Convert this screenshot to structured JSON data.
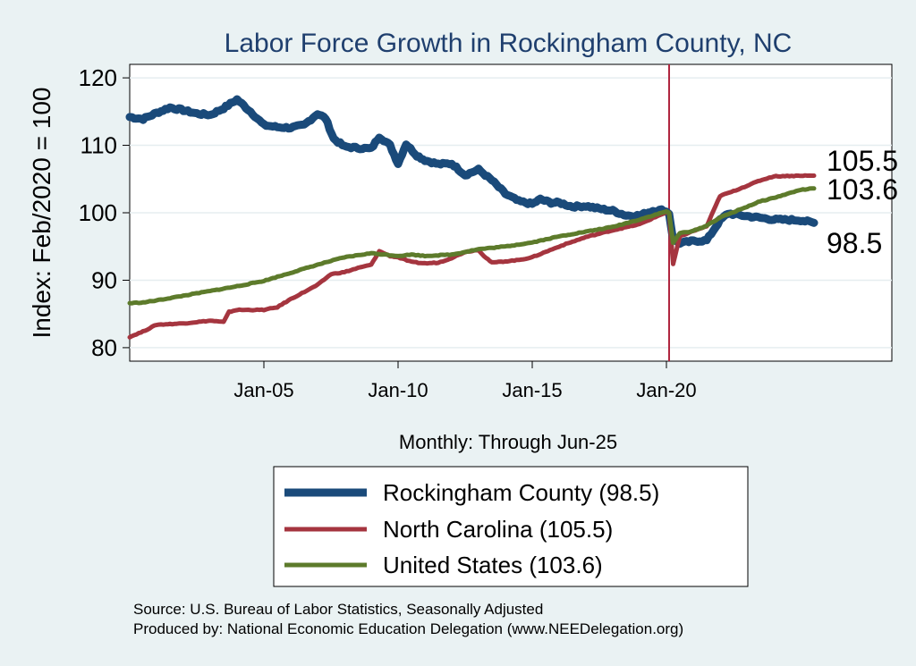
{
  "chart_data": {
    "type": "line",
    "title": "Labor Force Growth in Rockingham  County, NC",
    "xlabel": "Monthly: Through Jun-25",
    "ylabel": "Index: Feb/2020 = 100",
    "ylim": [
      78,
      122
    ],
    "yticks": [
      "80",
      "90",
      "100",
      "110",
      "120"
    ],
    "xlim": [
      2000.0,
      2028.4
    ],
    "xticks": [
      {
        "label": "Jan-05",
        "value": 2005.0
      },
      {
        "label": "Jan-10",
        "value": 2010.0
      },
      {
        "label": "Jan-15",
        "value": 2015.0
      },
      {
        "label": "Jan-20",
        "value": 2020.0
      }
    ],
    "reference_line": {
      "x": 2020.1,
      "color": "#b0263f"
    },
    "series": [
      {
        "name": "Rockingham  County",
        "legend": "Rockingham  County (98.5)",
        "end_label": "98.5",
        "color": "#1a4a7a",
        "width": 9,
        "points": [
          [
            2000.0,
            114.2
          ],
          [
            2000.5,
            113.9
          ],
          [
            2001.0,
            114.8
          ],
          [
            2001.5,
            115.6
          ],
          [
            2002.0,
            115.2
          ],
          [
            2002.5,
            114.7
          ],
          [
            2003.0,
            114.5
          ],
          [
            2003.5,
            115.5
          ],
          [
            2004.0,
            116.8
          ],
          [
            2004.5,
            115.0
          ],
          [
            2005.0,
            113.0
          ],
          [
            2005.5,
            112.7
          ],
          [
            2006.0,
            112.6
          ],
          [
            2006.5,
            113.0
          ],
          [
            2007.0,
            114.7
          ],
          [
            2007.3,
            114.0
          ],
          [
            2007.6,
            111.0
          ],
          [
            2008.0,
            109.8
          ],
          [
            2008.5,
            109.6
          ],
          [
            2009.0,
            109.5
          ],
          [
            2009.3,
            111.3
          ],
          [
            2009.7,
            110.0
          ],
          [
            2010.0,
            107.3
          ],
          [
            2010.3,
            110.2
          ],
          [
            2010.7,
            108.5
          ],
          [
            2011.0,
            107.8
          ],
          [
            2011.5,
            107.2
          ],
          [
            2012.0,
            107.3
          ],
          [
            2012.5,
            105.6
          ],
          [
            2013.0,
            106.4
          ],
          [
            2013.5,
            104.8
          ],
          [
            2014.0,
            102.8
          ],
          [
            2014.5,
            101.7
          ],
          [
            2015.0,
            101.3
          ],
          [
            2015.3,
            102.0
          ],
          [
            2015.7,
            101.5
          ],
          [
            2016.0,
            101.5
          ],
          [
            2016.5,
            100.9
          ],
          [
            2017.0,
            101.0
          ],
          [
            2017.5,
            100.6
          ],
          [
            2018.0,
            100.3
          ],
          [
            2018.5,
            99.6
          ],
          [
            2019.0,
            99.6
          ],
          [
            2019.5,
            100.3
          ],
          [
            2019.9,
            100.4
          ],
          [
            2020.1,
            99.9
          ],
          [
            2020.25,
            96.0
          ],
          [
            2020.5,
            95.5
          ],
          [
            2021.0,
            95.8
          ],
          [
            2021.5,
            95.9
          ],
          [
            2022.0,
            98.9
          ],
          [
            2022.3,
            99.9
          ],
          [
            2023.0,
            99.5
          ],
          [
            2024.0,
            99.0
          ],
          [
            2025.0,
            98.9
          ],
          [
            2025.5,
            98.5
          ]
        ]
      },
      {
        "name": "North Carolina",
        "legend": "North Carolina (105.5)",
        "end_label": "105.5",
        "color": "#a5353f",
        "width": 5,
        "points": [
          [
            2000.0,
            81.6
          ],
          [
            2000.5,
            82.4
          ],
          [
            2001.0,
            83.4
          ],
          [
            2002.0,
            83.6
          ],
          [
            2003.0,
            84.0
          ],
          [
            2003.5,
            83.8
          ],
          [
            2003.7,
            85.3
          ],
          [
            2004.0,
            85.6
          ],
          [
            2005.0,
            85.6
          ],
          [
            2005.5,
            86.0
          ],
          [
            2006.0,
            87.2
          ],
          [
            2007.0,
            89.3
          ],
          [
            2007.5,
            90.9
          ],
          [
            2008.0,
            91.2
          ],
          [
            2008.5,
            91.8
          ],
          [
            2009.0,
            92.3
          ],
          [
            2009.3,
            94.3
          ],
          [
            2009.7,
            93.6
          ],
          [
            2010.0,
            93.4
          ],
          [
            2010.5,
            92.7
          ],
          [
            2011.0,
            92.5
          ],
          [
            2011.5,
            92.6
          ],
          [
            2012.0,
            93.3
          ],
          [
            2012.5,
            94.2
          ],
          [
            2013.0,
            94.5
          ],
          [
            2013.2,
            93.6
          ],
          [
            2013.5,
            92.6
          ],
          [
            2014.0,
            92.8
          ],
          [
            2014.5,
            93.0
          ],
          [
            2015.0,
            93.4
          ],
          [
            2015.5,
            94.2
          ],
          [
            2016.0,
            95.0
          ],
          [
            2017.0,
            96.4
          ],
          [
            2018.0,
            97.4
          ],
          [
            2019.0,
            98.3
          ],
          [
            2020.0,
            100.1
          ],
          [
            2020.1,
            100.0
          ],
          [
            2020.25,
            92.4
          ],
          [
            2020.5,
            96.5
          ],
          [
            2021.0,
            97.3
          ],
          [
            2021.5,
            98.0
          ],
          [
            2022.0,
            102.5
          ],
          [
            2022.5,
            103.2
          ],
          [
            2023.0,
            104.0
          ],
          [
            2023.5,
            104.8
          ],
          [
            2024.0,
            105.4
          ],
          [
            2025.0,
            105.5
          ],
          [
            2025.5,
            105.5
          ]
        ]
      },
      {
        "name": "United States",
        "legend": "United States (103.6)",
        "end_label": "103.6",
        "color": "#5d7b2b",
        "width": 5,
        "points": [
          [
            2000.0,
            86.6
          ],
          [
            2000.5,
            86.7
          ],
          [
            2001.0,
            87.0
          ],
          [
            2002.0,
            87.7
          ],
          [
            2003.0,
            88.4
          ],
          [
            2004.0,
            89.1
          ],
          [
            2005.0,
            89.9
          ],
          [
            2006.0,
            91.1
          ],
          [
            2007.0,
            92.3
          ],
          [
            2008.0,
            93.4
          ],
          [
            2009.0,
            94.0
          ],
          [
            2009.5,
            93.8
          ],
          [
            2010.0,
            93.6
          ],
          [
            2010.5,
            93.8
          ],
          [
            2011.0,
            93.6
          ],
          [
            2012.0,
            93.8
          ],
          [
            2012.5,
            94.2
          ],
          [
            2013.0,
            94.6
          ],
          [
            2014.0,
            95.0
          ],
          [
            2015.0,
            95.6
          ],
          [
            2016.0,
            96.5
          ],
          [
            2017.0,
            97.2
          ],
          [
            2018.0,
            97.9
          ],
          [
            2019.0,
            99.0
          ],
          [
            2020.0,
            100.2
          ],
          [
            2020.1,
            100.0
          ],
          [
            2020.25,
            95.5
          ],
          [
            2020.5,
            97.0
          ],
          [
            2021.0,
            97.3
          ],
          [
            2021.5,
            98.1
          ],
          [
            2022.0,
            99.3
          ],
          [
            2023.0,
            100.9
          ],
          [
            2023.5,
            101.7
          ],
          [
            2024.0,
            102.2
          ],
          [
            2024.5,
            102.8
          ],
          [
            2025.0,
            103.4
          ],
          [
            2025.5,
            103.6
          ]
        ]
      }
    ]
  },
  "source_lines": [
    "Source: U.S. Bureau of Labor Statistics, Seasonally Adjusted",
    "Produced by: National Economic Education Delegation (www.NEEDelegation.org)"
  ]
}
